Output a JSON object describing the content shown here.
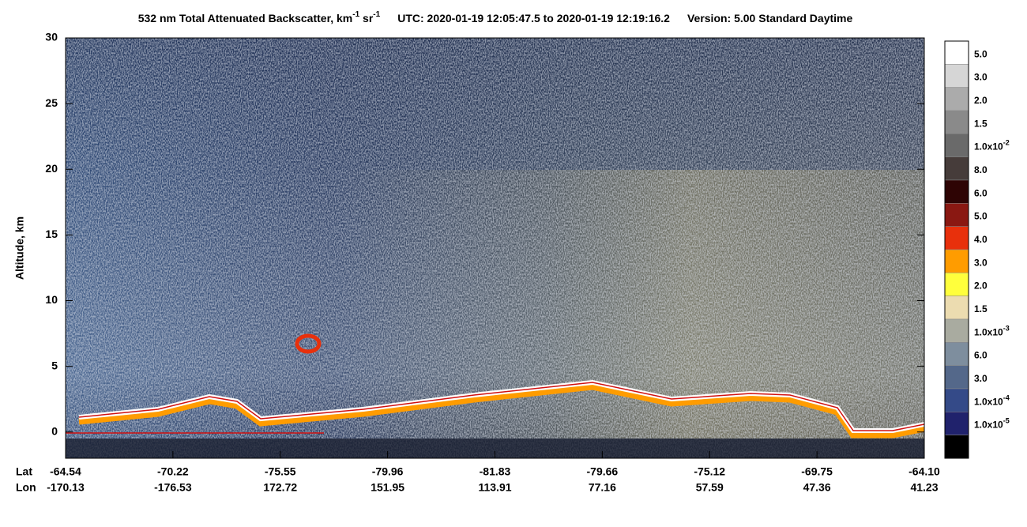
{
  "chart_data": {
    "type": "curtain",
    "title": {
      "main": "532 nm Total Attenuated Backscatter, km",
      "sup1": "-1",
      "unit2": " sr",
      "sup2": "-1",
      "utc": "UTC:  2020-01-19 12:05:47.5  to  2020-01-19 12:19:16.2",
      "version": "Version: 5.00  Standard  Daytime"
    },
    "y_label": "Altitude, km",
    "ylim": [
      -2,
      30
    ],
    "yticks": [
      0,
      5,
      10,
      15,
      20,
      25,
      30
    ],
    "x_row_labels": [
      "Lat",
      "Lon"
    ],
    "lat": [
      -64.54,
      -70.22,
      -75.55,
      -79.96,
      -81.83,
      -79.66,
      -75.12,
      -69.75,
      {
        "value": -64.1,
        "label": "-64.10"
      }
    ],
    "lon": [
      -170.13,
      -176.53,
      172.72,
      151.95,
      113.91,
      77.16,
      57.59,
      47.36,
      41.23
    ],
    "colorbar": [
      {
        "color": "#ffffff",
        "label": "5.0"
      },
      {
        "color": "#d6d6d6",
        "label": "3.0"
      },
      {
        "color": "#ababab",
        "label": "2.0"
      },
      {
        "color": "#8a8a8a",
        "label": "1.5"
      },
      {
        "color": "#6a6a6a",
        "label": "1.0x10",
        "exp": "-2"
      },
      {
        "color": "#463c3a",
        "label": "8.0"
      },
      {
        "color": "#2e0404",
        "label": "6.0"
      },
      {
        "color": "#8a1812",
        "label": "5.0"
      },
      {
        "color": "#e8300c",
        "label": "4.0"
      },
      {
        "color": "#ff9c00",
        "label": "3.0"
      },
      {
        "color": "#ffff3c",
        "label": "2.0"
      },
      {
        "color": "#ecdcb0",
        "label": "1.5"
      },
      {
        "color": "#a9aba0",
        "label": "1.0x10",
        "exp": "-3"
      },
      {
        "color": "#7e8e9e",
        "label": "6.0"
      },
      {
        "color": "#54688a",
        "label": "3.0"
      },
      {
        "color": "#344a88",
        "label": "1.0x10",
        "exp": "-4"
      },
      {
        "color": "#20226c",
        "label": "1.0x10",
        "exp": "-5"
      },
      {
        "color": "#000000"
      }
    ]
  }
}
